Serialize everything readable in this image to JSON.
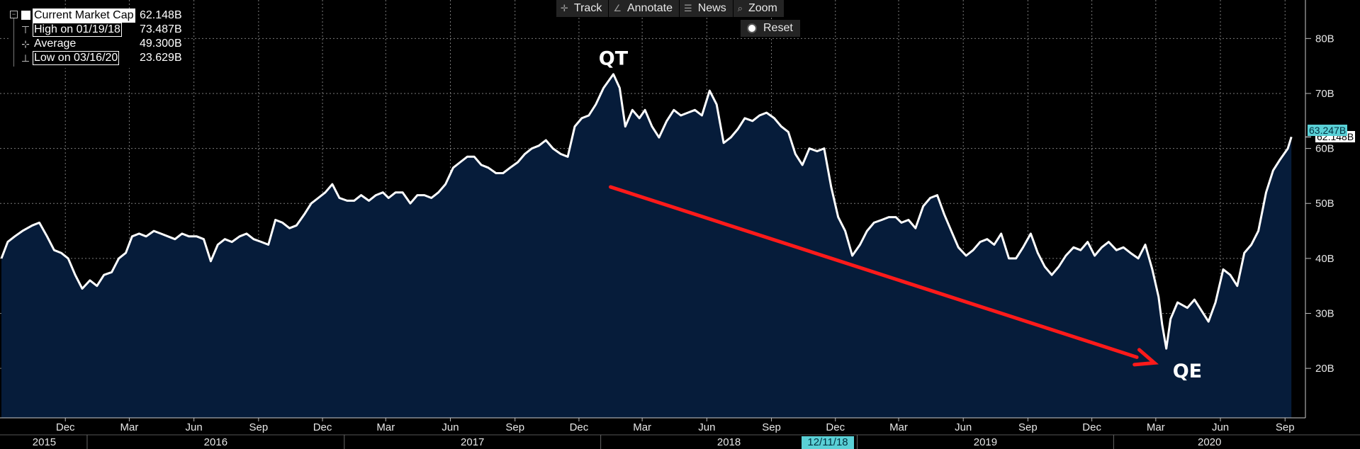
{
  "toolbar": {
    "track_label": "Track",
    "annotate_label": "Annotate",
    "news_label": "News",
    "zoom_label": "Zoom",
    "reset_label": "Reset"
  },
  "legend": {
    "rows": [
      {
        "label": "Current Market Cap",
        "value": "62.148B"
      },
      {
        "label": "High on 01/19/18",
        "value": "73.487B"
      },
      {
        "label": "Average",
        "value": "49.300B"
      },
      {
        "label": "Low on 03/16/20",
        "value": "23.629B"
      }
    ]
  },
  "tags": {
    "latest": "63.247B",
    "current": "62.148B",
    "crosshair_date": "12/11/18"
  },
  "colors": {
    "background": "#000000",
    "area_fill": "#061c3a",
    "line": "#ffffff",
    "arrow": "#ff1a1a",
    "tag_cyan": "#5ad0d6"
  },
  "chart_data": {
    "type": "area",
    "y_unit": "B",
    "ylim": [
      11,
      87
    ],
    "y_ticks": [
      "20B",
      "30B",
      "40B",
      "50B",
      "60B",
      "70B",
      "80B"
    ],
    "grid": true,
    "x_ticks": [
      {
        "date": "2015-12-01",
        "label": "Dec"
      },
      {
        "date": "2016-03-01",
        "label": "Mar"
      },
      {
        "date": "2016-06-01",
        "label": "Jun"
      },
      {
        "date": "2016-09-01",
        "label": "Sep"
      },
      {
        "date": "2016-12-01",
        "label": "Dec"
      },
      {
        "date": "2017-03-01",
        "label": "Mar"
      },
      {
        "date": "2017-06-01",
        "label": "Jun"
      },
      {
        "date": "2017-09-01",
        "label": "Sep"
      },
      {
        "date": "2017-12-01",
        "label": "Dec"
      },
      {
        "date": "2018-03-01",
        "label": "Mar"
      },
      {
        "date": "2018-06-01",
        "label": "Jun"
      },
      {
        "date": "2018-09-01",
        "label": "Sep"
      },
      {
        "date": "2018-12-01",
        "label": "Dec"
      },
      {
        "date": "2019-03-01",
        "label": "Mar"
      },
      {
        "date": "2019-06-01",
        "label": "Jun"
      },
      {
        "date": "2019-09-01",
        "label": "Sep"
      },
      {
        "date": "2019-12-01",
        "label": "Dec"
      },
      {
        "date": "2020-03-01",
        "label": "Mar"
      },
      {
        "date": "2020-06-01",
        "label": "Jun"
      },
      {
        "date": "2020-09-01",
        "label": "Sep"
      }
    ],
    "years": [
      "2015",
      "2016",
      "2017",
      "2018",
      "2019",
      "2020"
    ],
    "annotations": [
      {
        "text": "QT",
        "date": "2018-01-19",
        "value": 76.5
      },
      {
        "text": "QE",
        "date": "2020-04-15",
        "value": 19.6
      }
    ],
    "arrow": {
      "from": {
        "date": "2018-01-15",
        "value": 53
      },
      "to": {
        "date": "2020-02-28",
        "value": 21
      }
    },
    "series": [
      {
        "name": "Current Market Cap",
        "points": [
          [
            "2015-09-01",
            40
          ],
          [
            "2015-09-10",
            43
          ],
          [
            "2015-09-20",
            44
          ],
          [
            "2015-10-01",
            45
          ],
          [
            "2015-10-15",
            46
          ],
          [
            "2015-10-25",
            46.5
          ],
          [
            "2015-11-05",
            44
          ],
          [
            "2015-11-15",
            41.5
          ],
          [
            "2015-11-25",
            41
          ],
          [
            "2015-12-05",
            40
          ],
          [
            "2015-12-15",
            37
          ],
          [
            "2015-12-25",
            34.5
          ],
          [
            "2016-01-05",
            36
          ],
          [
            "2016-01-15",
            35
          ],
          [
            "2016-01-25",
            37
          ],
          [
            "2016-02-05",
            37.5
          ],
          [
            "2016-02-15",
            40
          ],
          [
            "2016-02-25",
            41
          ],
          [
            "2016-03-05",
            44
          ],
          [
            "2016-03-15",
            44.5
          ],
          [
            "2016-03-25",
            44
          ],
          [
            "2016-04-05",
            45
          ],
          [
            "2016-04-15",
            44.5
          ],
          [
            "2016-04-25",
            44
          ],
          [
            "2016-05-05",
            43.5
          ],
          [
            "2016-05-15",
            44.5
          ],
          [
            "2016-05-25",
            44
          ],
          [
            "2016-06-05",
            44
          ],
          [
            "2016-06-15",
            43.5
          ],
          [
            "2016-06-25",
            39.5
          ],
          [
            "2016-07-05",
            42.5
          ],
          [
            "2016-07-15",
            43.5
          ],
          [
            "2016-07-25",
            43
          ],
          [
            "2016-08-05",
            44
          ],
          [
            "2016-08-15",
            44.5
          ],
          [
            "2016-08-25",
            43.5
          ],
          [
            "2016-09-05",
            43
          ],
          [
            "2016-09-15",
            42.5
          ],
          [
            "2016-09-25",
            47
          ],
          [
            "2016-10-05",
            46.5
          ],
          [
            "2016-10-15",
            45.5
          ],
          [
            "2016-10-25",
            46
          ],
          [
            "2016-11-05",
            48
          ],
          [
            "2016-11-15",
            50
          ],
          [
            "2016-11-25",
            51
          ],
          [
            "2016-12-05",
            52
          ],
          [
            "2016-12-15",
            53.5
          ],
          [
            "2016-12-25",
            51
          ],
          [
            "2017-01-05",
            50.5
          ],
          [
            "2017-01-15",
            50.5
          ],
          [
            "2017-01-25",
            51.5
          ],
          [
            "2017-02-05",
            50.5
          ],
          [
            "2017-02-15",
            51.5
          ],
          [
            "2017-02-25",
            52
          ],
          [
            "2017-03-05",
            51
          ],
          [
            "2017-03-15",
            52
          ],
          [
            "2017-03-25",
            52
          ],
          [
            "2017-04-05",
            50
          ],
          [
            "2017-04-15",
            51.5
          ],
          [
            "2017-04-25",
            51.5
          ],
          [
            "2017-05-05",
            51
          ],
          [
            "2017-05-15",
            52
          ],
          [
            "2017-05-25",
            53.5
          ],
          [
            "2017-06-05",
            56.5
          ],
          [
            "2017-06-15",
            57.5
          ],
          [
            "2017-06-25",
            58.5
          ],
          [
            "2017-07-05",
            58.5
          ],
          [
            "2017-07-15",
            57
          ],
          [
            "2017-07-25",
            56.5
          ],
          [
            "2017-08-05",
            55.5
          ],
          [
            "2017-08-15",
            55.5
          ],
          [
            "2017-08-25",
            56.5
          ],
          [
            "2017-09-05",
            57.5
          ],
          [
            "2017-09-15",
            59
          ],
          [
            "2017-09-25",
            60
          ],
          [
            "2017-10-05",
            60.5
          ],
          [
            "2017-10-15",
            61.5
          ],
          [
            "2017-10-25",
            60
          ],
          [
            "2017-11-05",
            59
          ],
          [
            "2017-11-15",
            58.5
          ],
          [
            "2017-11-25",
            64
          ],
          [
            "2017-12-05",
            65.5
          ],
          [
            "2017-12-15",
            66
          ],
          [
            "2017-12-25",
            68
          ],
          [
            "2018-01-05",
            71
          ],
          [
            "2018-01-19",
            73.5
          ],
          [
            "2018-01-28",
            71
          ],
          [
            "2018-02-05",
            64
          ],
          [
            "2018-02-15",
            67
          ],
          [
            "2018-02-25",
            65.5
          ],
          [
            "2018-03-05",
            67
          ],
          [
            "2018-03-15",
            64
          ],
          [
            "2018-03-25",
            62
          ],
          [
            "2018-04-05",
            65
          ],
          [
            "2018-04-15",
            67
          ],
          [
            "2018-04-25",
            66
          ],
          [
            "2018-05-05",
            66.5
          ],
          [
            "2018-05-15",
            67
          ],
          [
            "2018-05-25",
            66
          ],
          [
            "2018-06-05",
            70.5
          ],
          [
            "2018-06-15",
            68
          ],
          [
            "2018-06-25",
            61
          ],
          [
            "2018-07-05",
            62
          ],
          [
            "2018-07-15",
            63.5
          ],
          [
            "2018-07-25",
            65.5
          ],
          [
            "2018-08-05",
            65
          ],
          [
            "2018-08-15",
            66
          ],
          [
            "2018-08-25",
            66.5
          ],
          [
            "2018-09-05",
            65.5
          ],
          [
            "2018-09-15",
            64
          ],
          [
            "2018-09-25",
            63
          ],
          [
            "2018-10-05",
            59
          ],
          [
            "2018-10-15",
            57
          ],
          [
            "2018-10-25",
            60
          ],
          [
            "2018-11-05",
            59.5
          ],
          [
            "2018-11-15",
            60
          ],
          [
            "2018-11-25",
            53
          ],
          [
            "2018-12-05",
            47.5
          ],
          [
            "2018-12-15",
            45
          ],
          [
            "2018-12-25",
            40.5
          ],
          [
            "2019-01-05",
            42.5
          ],
          [
            "2019-01-15",
            45
          ],
          [
            "2019-01-25",
            46.5
          ],
          [
            "2019-02-05",
            47
          ],
          [
            "2019-02-15",
            47.5
          ],
          [
            "2019-02-25",
            47.5
          ],
          [
            "2019-03-05",
            46.5
          ],
          [
            "2019-03-15",
            47
          ],
          [
            "2019-03-25",
            45.5
          ],
          [
            "2019-04-05",
            49.5
          ],
          [
            "2019-04-15",
            51
          ],
          [
            "2019-04-25",
            51.5
          ],
          [
            "2019-05-05",
            48
          ],
          [
            "2019-05-15",
            45
          ],
          [
            "2019-05-25",
            42
          ],
          [
            "2019-06-05",
            40.5
          ],
          [
            "2019-06-15",
            41.5
          ],
          [
            "2019-06-25",
            43
          ],
          [
            "2019-07-05",
            43.5
          ],
          [
            "2019-07-15",
            42.5
          ],
          [
            "2019-07-25",
            44.5
          ],
          [
            "2019-08-05",
            40
          ],
          [
            "2019-08-15",
            40
          ],
          [
            "2019-08-25",
            42
          ],
          [
            "2019-09-05",
            44.5
          ],
          [
            "2019-09-15",
            41
          ],
          [
            "2019-09-25",
            38.5
          ],
          [
            "2019-10-05",
            37
          ],
          [
            "2019-10-15",
            38.5
          ],
          [
            "2019-10-25",
            40.5
          ],
          [
            "2019-11-05",
            42
          ],
          [
            "2019-11-15",
            41.5
          ],
          [
            "2019-11-25",
            43
          ],
          [
            "2019-12-05",
            40.5
          ],
          [
            "2019-12-15",
            42
          ],
          [
            "2019-12-25",
            43
          ],
          [
            "2020-01-05",
            41.5
          ],
          [
            "2020-01-15",
            42
          ],
          [
            "2020-01-25",
            41
          ],
          [
            "2020-02-05",
            40
          ],
          [
            "2020-02-15",
            42.5
          ],
          [
            "2020-02-25",
            38
          ],
          [
            "2020-03-05",
            33
          ],
          [
            "2020-03-10",
            28
          ],
          [
            "2020-03-16",
            23.6
          ],
          [
            "2020-03-22",
            29
          ],
          [
            "2020-04-01",
            32
          ],
          [
            "2020-04-15",
            31
          ],
          [
            "2020-04-25",
            32.5
          ],
          [
            "2020-05-05",
            30.5
          ],
          [
            "2020-05-15",
            28.5
          ],
          [
            "2020-05-25",
            32
          ],
          [
            "2020-06-05",
            38
          ],
          [
            "2020-06-15",
            37
          ],
          [
            "2020-06-25",
            35
          ],
          [
            "2020-07-05",
            41
          ],
          [
            "2020-07-15",
            42.5
          ],
          [
            "2020-07-25",
            45
          ],
          [
            "2020-08-05",
            52
          ],
          [
            "2020-08-15",
            56
          ],
          [
            "2020-08-25",
            58
          ],
          [
            "2020-09-05",
            60
          ],
          [
            "2020-09-10",
            62.1
          ]
        ]
      }
    ]
  }
}
